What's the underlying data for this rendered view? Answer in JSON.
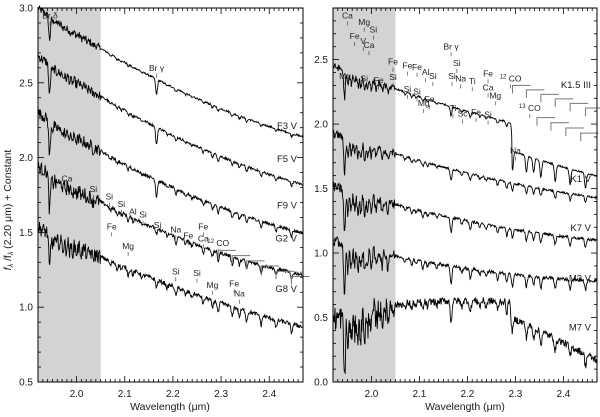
{
  "chart_data": [
    {
      "type": "line",
      "panel": "left",
      "title": "",
      "xlabel": "Wavelength (μm)",
      "ylabel": "f_λ / f_λ (2.20 μm) + Constant",
      "xlim": [
        1.92,
        2.47
      ],
      "ylim": [
        0.5,
        3.0
      ],
      "xticks": [
        2.0,
        2.1,
        2.2,
        2.3,
        2.4
      ],
      "xtick_labels": [
        "2.0",
        "2.1",
        "2.2",
        "2.3",
        "2.4"
      ],
      "yticks": [
        0.5,
        1.0,
        1.5,
        2.0,
        2.5,
        3.0
      ],
      "ytick_labels": [
        "0.5",
        "1.0",
        "1.5",
        "2.0",
        "2.5",
        "3.0"
      ],
      "shaded_region": [
        1.92,
        2.05
      ],
      "grid": false,
      "series": [
        {
          "name": "F3 V",
          "offset_at_2.20": 2.47,
          "slope": -1.55,
          "level_2_47": 2.18,
          "label_y": 2.19
        },
        {
          "name": "F5 V",
          "offset_at_2.20": 2.15,
          "slope": -1.55,
          "level_2_47": 1.84,
          "label_y": 1.97
        },
        {
          "name": "F9 V",
          "offset_at_2.20": 1.8,
          "slope": -1.45,
          "level_2_47": 1.55,
          "label_y": 1.66
        },
        {
          "name": "G2 V",
          "offset_at_2.20": 1.48,
          "slope": -1.3,
          "level_2_47": 1.21,
          "label_y": 1.44
        },
        {
          "name": "G8 V",
          "offset_at_2.20": 1.14,
          "slope": -1.2,
          "level_2_47": 0.93,
          "label_y": 1.1
        }
      ],
      "annotations": [
        {
          "text": "Br δ",
          "x": 1.945,
          "y": 2.93
        },
        {
          "text": "Br γ",
          "x": 2.166,
          "y": 2.58
        },
        {
          "text": "Ca",
          "x": 1.98,
          "y": 1.84
        },
        {
          "text": "Si",
          "x": 2.035,
          "y": 1.77
        },
        {
          "text": "Si",
          "x": 2.068,
          "y": 1.72
        },
        {
          "text": "Si",
          "x": 2.093,
          "y": 1.67
        },
        {
          "text": "Fe",
          "x": 2.073,
          "y": 1.52
        },
        {
          "text": "Al",
          "x": 2.117,
          "y": 1.62
        },
        {
          "text": "Si",
          "x": 2.138,
          "y": 1.6
        },
        {
          "text": "Mg",
          "x": 2.107,
          "y": 1.39
        },
        {
          "text": "Si",
          "x": 2.168,
          "y": 1.53
        },
        {
          "text": "Na",
          "x": 2.206,
          "y": 1.5
        },
        {
          "text": "Fe",
          "x": 2.232,
          "y": 1.46
        },
        {
          "text": "Fe",
          "x": 2.263,
          "y": 1.52
        },
        {
          "text": "Ca",
          "x": 2.263,
          "y": 1.44
        },
        {
          "text": "12CO",
          "x": 2.294,
          "y": 1.41
        },
        {
          "text": "Si",
          "x": 2.206,
          "y": 1.22
        },
        {
          "text": "Si",
          "x": 2.25,
          "y": 1.21
        },
        {
          "text": "Mg",
          "x": 2.282,
          "y": 1.13
        },
        {
          "text": "Fe",
          "x": 2.327,
          "y": 1.14
        },
        {
          "text": "Na",
          "x": 2.338,
          "y": 1.07
        }
      ]
    },
    {
      "type": "line",
      "panel": "right",
      "title": "",
      "xlabel": "Wavelength (μm)",
      "ylabel": "",
      "xlim": [
        1.92,
        2.47
      ],
      "ylim": [
        0.0,
        2.9
      ],
      "xticks": [
        2.0,
        2.1,
        2.2,
        2.3,
        2.4
      ],
      "xtick_labels": [
        "2.0",
        "2.1",
        "2.2",
        "2.3",
        "2.4"
      ],
      "yticks": [
        0.0,
        0.5,
        1.0,
        1.5,
        2.0,
        2.5
      ],
      "ytick_labels": [
        "0.0",
        "0.5",
        "1.0",
        "1.5",
        "2.0",
        "2.5"
      ],
      "shaded_region": [
        1.92,
        2.05
      ],
      "grid": false,
      "series": [
        {
          "name": "K1.5 III",
          "offset_at_2.20": 2.1,
          "slope": -1.05,
          "level_2_47": 1.62,
          "label_y": 2.28
        },
        {
          "name": "K1 V",
          "offset_at_2.20": 1.62,
          "slope": -0.9,
          "level_2_47": 1.34,
          "label_y": 1.55
        },
        {
          "name": "K7 V",
          "offset_at_2.20": 1.25,
          "slope": -0.75,
          "level_2_47": 0.98,
          "label_y": 1.17
        },
        {
          "name": "M3 V",
          "offset_at_2.20": 0.88,
          "slope": -0.55,
          "level_2_47": 0.66,
          "label_y": 0.78
        },
        {
          "name": "M7 V",
          "offset_at_2.20": 0.63,
          "slope": 0.05,
          "level_2_47": 0.18,
          "label_y": 0.4
        }
      ],
      "annotations": [
        {
          "text": "Ca",
          "x": 1.95,
          "y": 2.82
        },
        {
          "text": "Mg",
          "x": 1.985,
          "y": 2.77
        },
        {
          "text": "Si",
          "x": 2.004,
          "y": 2.71
        },
        {
          "text": "Fe",
          "x": 1.965,
          "y": 2.66
        },
        {
          "text": "V",
          "x": 1.983,
          "y": 2.62
        },
        {
          "text": "Ca",
          "x": 1.995,
          "y": 2.59
        },
        {
          "text": "Mg",
          "x": 1.945,
          "y": 2.35
        },
        {
          "text": "Si",
          "x": 1.985,
          "y": 2.33
        },
        {
          "text": "Fe",
          "x": 2.015,
          "y": 2.32
        },
        {
          "text": "Fe",
          "x": 2.045,
          "y": 2.46
        },
        {
          "text": "Si",
          "x": 2.045,
          "y": 2.34
        },
        {
          "text": "Fe",
          "x": 2.075,
          "y": 2.43
        },
        {
          "text": "Fe",
          "x": 2.095,
          "y": 2.42
        },
        {
          "text": "Si",
          "x": 2.075,
          "y": 2.25
        },
        {
          "text": "Si",
          "x": 2.095,
          "y": 2.23
        },
        {
          "text": "Al",
          "x": 2.113,
          "y": 2.38
        },
        {
          "text": "Si",
          "x": 2.128,
          "y": 2.35
        },
        {
          "text": "Fe",
          "x": 2.121,
          "y": 2.17
        },
        {
          "text": "Mg",
          "x": 2.109,
          "y": 2.14
        },
        {
          "text": "Br γ",
          "x": 2.166,
          "y": 2.58
        },
        {
          "text": "Si",
          "x": 2.178,
          "y": 2.45
        },
        {
          "text": "Si",
          "x": 2.168,
          "y": 2.35
        },
        {
          "text": "Na",
          "x": 2.186,
          "y": 2.33
        },
        {
          "text": "Ti",
          "x": 2.21,
          "y": 2.31
        },
        {
          "text": "Ti",
          "x": 2.17,
          "y": 2.1
        },
        {
          "text": "Sc",
          "x": 2.19,
          "y": 2.06
        },
        {
          "text": "Fe",
          "x": 2.218,
          "y": 2.07
        },
        {
          "text": "Fe",
          "x": 2.243,
          "y": 2.37
        },
        {
          "text": "Ca",
          "x": 2.243,
          "y": 2.26
        },
        {
          "text": "Mg",
          "x": 2.258,
          "y": 2.2
        },
        {
          "text": "Si",
          "x": 2.243,
          "y": 2.05
        },
        {
          "text": "12CO",
          "x": 2.29,
          "y": 2.33
        },
        {
          "text": "13CO",
          "x": 2.33,
          "y": 2.1
        },
        {
          "text": "Na",
          "x": 2.3,
          "y": 1.77
        }
      ]
    }
  ],
  "labels": {
    "left_ylabel_prefix": "f",
    "left_ylabel_sub": "λ",
    "left_ylabel_mid": " /f",
    "left_ylabel_sub2": "λ",
    "left_ylabel_suffix": " (2.20 μm) + Constant",
    "xlabel_left": "Wavelength (μm)",
    "xlabel_right": "Wavelength (μm)"
  },
  "colors": {
    "shade": "#d3d3d3",
    "line": "#000000",
    "axis": "#000000",
    "co_bracket": "#777777"
  }
}
